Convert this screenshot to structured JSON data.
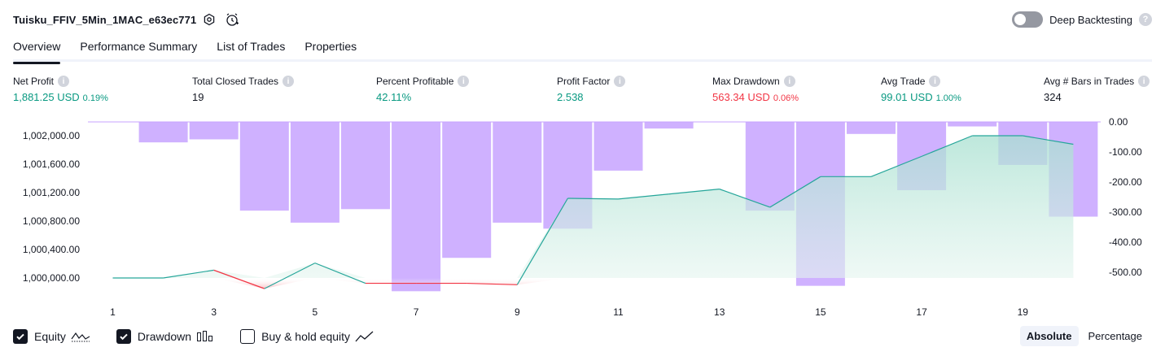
{
  "header": {
    "strategy_name": "Tuisku_FFIV_5Min_1MAC_e63ec771",
    "deep_backtesting_label": "Deep Backtesting",
    "deep_backtesting_enabled": false,
    "help_glyph": "?"
  },
  "tabs": [
    {
      "label": "Overview",
      "active": true
    },
    {
      "label": "Performance Summary",
      "active": false
    },
    {
      "label": "List of Trades",
      "active": false
    },
    {
      "label": "Properties",
      "active": false
    }
  ],
  "metrics": [
    {
      "label": "Net Profit",
      "value": "1,881.25 USD",
      "pct": "0.19%",
      "color": "#089981"
    },
    {
      "label": "Total Closed Trades",
      "value": "19",
      "pct": "",
      "color": "#131722"
    },
    {
      "label": "Percent Profitable",
      "value": "42.11%",
      "pct": "",
      "color": "#089981"
    },
    {
      "label": "Profit Factor",
      "value": "2.538",
      "pct": "",
      "color": "#089981"
    },
    {
      "label": "Max Drawdown",
      "value": "563.34 USD",
      "pct": "0.06%",
      "color": "#f23645"
    },
    {
      "label": "Avg Trade",
      "value": "99.01 USD",
      "pct": "1.00%",
      "color": "#089981"
    },
    {
      "label": "Avg # Bars in Trades",
      "value": "324",
      "pct": "",
      "color": "#131722"
    }
  ],
  "info_glyph": "i",
  "chart_data": {
    "type": "line",
    "x": [
      1,
      2,
      3,
      4,
      5,
      6,
      7,
      8,
      9,
      10,
      11,
      12,
      13,
      14,
      15,
      16,
      17,
      18,
      19,
      20
    ],
    "x_tick_labels": [
      "1",
      "3",
      "5",
      "7",
      "9",
      "11",
      "13",
      "15",
      "17",
      "19"
    ],
    "x_tick_values": [
      1,
      3,
      5,
      7,
      9,
      11,
      13,
      15,
      17,
      19
    ],
    "series": [
      {
        "name": "Equity",
        "axis": "left",
        "baseline": 1000000,
        "values": [
          1000000,
          1000000,
          1000110,
          999850,
          1000210,
          999925,
          999925,
          999925,
          999905,
          1001120,
          1001110,
          1001180,
          1001250,
          1000995,
          1001425,
          1001425,
          1001710,
          1002000,
          1002000,
          1001880
        ]
      },
      {
        "name": "Drawdown",
        "type": "bar",
        "axis": "right",
        "values": [
          0,
          -68,
          -58,
          -295,
          -335,
          -290,
          -563,
          -452,
          -335,
          -355,
          -162,
          -22,
          0,
          -295,
          -545,
          -40,
          -227,
          -15,
          -143,
          -315
        ]
      }
    ],
    "left_axis": {
      "ticks": [
        "1,000,000.00",
        "1,000,400.00",
        "1,000,800.00",
        "1,001,200.00",
        "1,001,600.00",
        "1,002,000.00"
      ],
      "tick_values": [
        1000000,
        1000400,
        1000800,
        1001200,
        1001600,
        1002000
      ],
      "range": [
        999800,
        1002200
      ]
    },
    "right_axis": {
      "ticks": [
        "0.00",
        "-100.00",
        "-200.00",
        "-300.00",
        "-400.00",
        "-500.00"
      ],
      "tick_values": [
        0,
        -100,
        -200,
        -300,
        -400,
        -500
      ],
      "range": [
        -570,
        0
      ]
    },
    "colors": {
      "equity_up": "#26a69a",
      "equity_down": "#f23645",
      "equity_fill": "#c8ebe1",
      "drawdown_bar": "#c7a3ff"
    }
  },
  "legend": [
    {
      "label": "Equity",
      "checked": true,
      "icon": "equity-line-icon"
    },
    {
      "label": "Drawdown",
      "checked": true,
      "icon": "drawdown-bars-icon"
    },
    {
      "label": "Buy & hold equity",
      "checked": false,
      "icon": "buy-hold-line-icon"
    }
  ],
  "mode": {
    "absolute_label": "Absolute",
    "percentage_label": "Percentage",
    "selected": "Absolute"
  }
}
